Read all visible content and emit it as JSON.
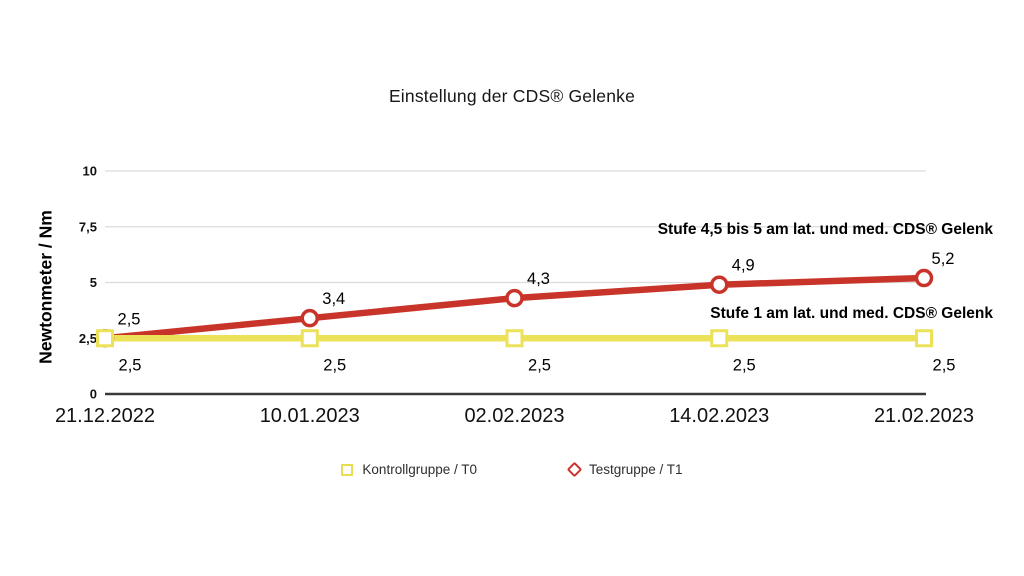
{
  "chart_data": {
    "type": "line",
    "title": "Einstellung der CDS® Gelenke",
    "ylabel": "Newtonmeter / Nm",
    "xlabel": "",
    "categories": [
      "21.12.2022",
      "10.01.2023",
      "02.02.2023",
      "14.02.2023",
      "21.02.2023"
    ],
    "series": [
      {
        "name": "Kontrollgruppe / T0",
        "values": [
          2.5,
          2.5,
          2.5,
          2.5,
          2.5
        ],
        "labels": [
          "2,5",
          "2,5",
          "2,5",
          "2,5",
          "2,5"
        ],
        "color": "#ece25a",
        "marker": "square",
        "label_side": "below"
      },
      {
        "name": "Testgruppe / T1",
        "values": [
          2.5,
          3.4,
          4.3,
          4.9,
          5.2
        ],
        "labels": [
          "2,5",
          "3,4",
          "4,3",
          "4,9",
          "5,2"
        ],
        "color": "#c9342a",
        "marker": "circle",
        "label_side": "above"
      }
    ],
    "ylim": [
      0,
      10
    ],
    "y_ticks": [
      {
        "value": 10,
        "label": "10"
      },
      {
        "value": 7.5,
        "label": "7,5"
      },
      {
        "value": 5,
        "label": "5"
      },
      {
        "value": 2.5,
        "label": "2,5"
      },
      {
        "value": 0,
        "label": "0"
      }
    ],
    "grid": "horizontal",
    "legend_position": "bottom",
    "annotations": [
      {
        "text": "Stufe 4,5 bis 5 am lat. und med. CDS® Gelenk",
        "series": "Testgruppe / T1"
      },
      {
        "text": "Stufe 1 am lat. und med. CDS® Gelenk",
        "series": "Kontrollgruppe / T0"
      }
    ],
    "colors": {
      "grid": "#dcdcdc",
      "axis": "#3a3a3a",
      "text": "#111111",
      "marker_fill": "#ffffff"
    }
  }
}
